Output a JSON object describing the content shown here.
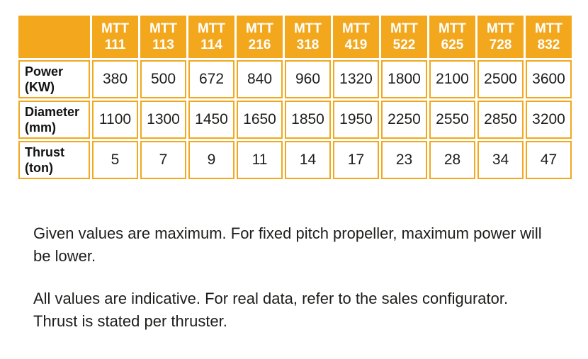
{
  "table": {
    "corner_label": "",
    "columns": [
      {
        "prefix": "MTT",
        "code": "111"
      },
      {
        "prefix": "MTT",
        "code": "113"
      },
      {
        "prefix": "MTT",
        "code": "114"
      },
      {
        "prefix": "MTT",
        "code": "216"
      },
      {
        "prefix": "MTT",
        "code": "318"
      },
      {
        "prefix": "MTT",
        "code": "419"
      },
      {
        "prefix": "MTT",
        "code": "522"
      },
      {
        "prefix": "MTT",
        "code": "625"
      },
      {
        "prefix": "MTT",
        "code": "728"
      },
      {
        "prefix": "MTT",
        "code": "832"
      }
    ],
    "rows": [
      {
        "label": "Power",
        "unit": "(KW)",
        "values": [
          "380",
          "500",
          "672",
          "840",
          "960",
          "1320",
          "1800",
          "2100",
          "2500",
          "3600"
        ]
      },
      {
        "label": "Diameter",
        "unit": "(mm)",
        "values": [
          "1100",
          "1300",
          "1450",
          "1650",
          "1850",
          "1950",
          "2250",
          "2550",
          "2850",
          "3200"
        ]
      },
      {
        "label": "Thrust",
        "unit": "(ton)",
        "values": [
          "5",
          "7",
          "9",
          "11",
          "14",
          "17",
          "23",
          "28",
          "34",
          "47"
        ]
      }
    ]
  },
  "notes": [
    {
      "lines": [
        "Given values are maximum. For fixed pitch propeller, maximum power will",
        "be lower."
      ]
    },
    {
      "lines": [
        "All values are indicative. For real data, refer to the sales configurator.",
        "Thrust is stated per thruster."
      ]
    }
  ],
  "colors": {
    "accent_orange": "#f2a71d",
    "text_dark": "#1d1d1b"
  }
}
